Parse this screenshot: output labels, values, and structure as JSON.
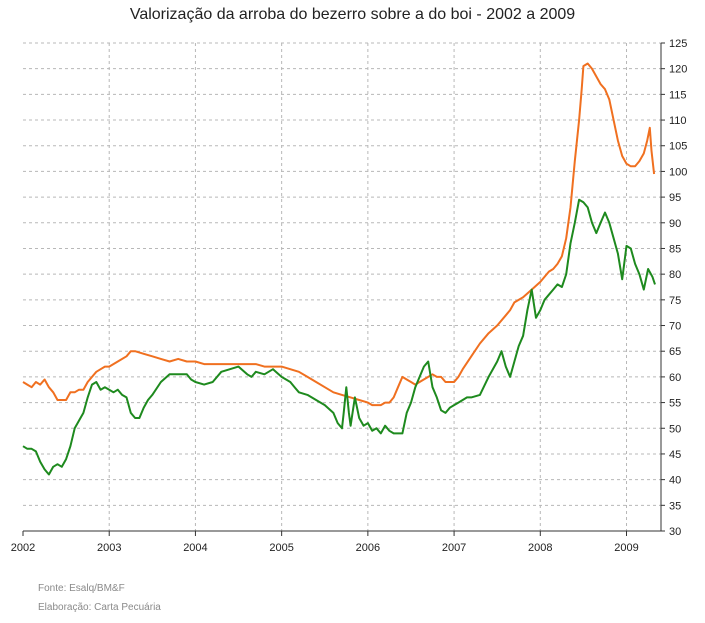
{
  "chart_data": {
    "type": "line",
    "title": "Valorização da arroba do bezerro sobre a do boi - 2002 a 2009",
    "xlim": [
      2002,
      2009.4
    ],
    "ylim": [
      30,
      125
    ],
    "x_ticks": [
      "2002",
      "2003",
      "2004",
      "2005",
      "2006",
      "2007",
      "2008",
      "2009"
    ],
    "y_ticks": [
      30,
      35,
      40,
      45,
      50,
      55,
      60,
      65,
      70,
      75,
      80,
      85,
      90,
      95,
      100,
      105,
      110,
      115,
      120,
      125
    ],
    "grid": true,
    "y_axis_side": "right",
    "series": [
      {
        "color": "#f07020",
        "points": [
          [
            2002.0,
            59
          ],
          [
            2002.05,
            58.5
          ],
          [
            2002.1,
            58
          ],
          [
            2002.15,
            59
          ],
          [
            2002.2,
            58.5
          ],
          [
            2002.25,
            59.5
          ],
          [
            2002.3,
            58
          ],
          [
            2002.35,
            57
          ],
          [
            2002.4,
            55.5
          ],
          [
            2002.45,
            55.5
          ],
          [
            2002.5,
            55.5
          ],
          [
            2002.55,
            57
          ],
          [
            2002.6,
            57
          ],
          [
            2002.65,
            57.5
          ],
          [
            2002.7,
            57.5
          ],
          [
            2002.75,
            59
          ],
          [
            2002.8,
            60
          ],
          [
            2002.85,
            61
          ],
          [
            2002.9,
            61.5
          ],
          [
            2002.95,
            62
          ],
          [
            2003.0,
            62
          ],
          [
            2003.1,
            63
          ],
          [
            2003.2,
            64
          ],
          [
            2003.25,
            65
          ],
          [
            2003.3,
            65
          ],
          [
            2003.4,
            64.5
          ],
          [
            2003.5,
            64
          ],
          [
            2003.6,
            63.5
          ],
          [
            2003.7,
            63
          ],
          [
            2003.8,
            63.5
          ],
          [
            2003.9,
            63
          ],
          [
            2004.0,
            63
          ],
          [
            2004.1,
            62.5
          ],
          [
            2004.2,
            62.5
          ],
          [
            2004.3,
            62.5
          ],
          [
            2004.4,
            62.5
          ],
          [
            2004.5,
            62.5
          ],
          [
            2004.6,
            62.5
          ],
          [
            2004.7,
            62.5
          ],
          [
            2004.8,
            62
          ],
          [
            2004.9,
            62
          ],
          [
            2005.0,
            62
          ],
          [
            2005.1,
            61.5
          ],
          [
            2005.2,
            61
          ],
          [
            2005.3,
            60
          ],
          [
            2005.4,
            59
          ],
          [
            2005.5,
            58
          ],
          [
            2005.6,
            57
          ],
          [
            2005.7,
            56.5
          ],
          [
            2005.8,
            56
          ],
          [
            2005.9,
            55.5
          ],
          [
            2006.0,
            55
          ],
          [
            2006.05,
            54.5
          ],
          [
            2006.1,
            54.5
          ],
          [
            2006.15,
            54.5
          ],
          [
            2006.2,
            55
          ],
          [
            2006.25,
            55
          ],
          [
            2006.3,
            56
          ],
          [
            2006.35,
            58
          ],
          [
            2006.4,
            60
          ],
          [
            2006.45,
            59.5
          ],
          [
            2006.5,
            59
          ],
          [
            2006.55,
            58.5
          ],
          [
            2006.6,
            59
          ],
          [
            2006.7,
            60
          ],
          [
            2006.75,
            60.5
          ],
          [
            2006.8,
            60
          ],
          [
            2006.85,
            60
          ],
          [
            2006.9,
            59
          ],
          [
            2007.0,
            59
          ],
          [
            2007.05,
            60
          ],
          [
            2007.1,
            61.5
          ],
          [
            2007.2,
            64
          ],
          [
            2007.3,
            66.5
          ],
          [
            2007.4,
            68.5
          ],
          [
            2007.5,
            70
          ],
          [
            2007.6,
            72
          ],
          [
            2007.65,
            73
          ],
          [
            2007.7,
            74.5
          ],
          [
            2007.8,
            75.5
          ],
          [
            2007.9,
            77
          ],
          [
            2008.0,
            78.5
          ],
          [
            2008.05,
            79.5
          ],
          [
            2008.1,
            80.5
          ],
          [
            2008.15,
            81
          ],
          [
            2008.2,
            82
          ],
          [
            2008.25,
            83.5
          ],
          [
            2008.3,
            87
          ],
          [
            2008.35,
            93
          ],
          [
            2008.4,
            102
          ],
          [
            2008.45,
            110
          ],
          [
            2008.48,
            116
          ],
          [
            2008.5,
            120.5
          ],
          [
            2008.55,
            121
          ],
          [
            2008.6,
            120
          ],
          [
            2008.7,
            117
          ],
          [
            2008.75,
            116
          ],
          [
            2008.8,
            114
          ],
          [
            2008.85,
            110
          ],
          [
            2008.9,
            106
          ],
          [
            2008.95,
            103
          ],
          [
            2009.0,
            101.5
          ],
          [
            2009.05,
            101
          ],
          [
            2009.1,
            101
          ],
          [
            2009.15,
            102
          ],
          [
            2009.2,
            103.5
          ],
          [
            2009.24,
            106
          ],
          [
            2009.27,
            108.5
          ],
          [
            2009.29,
            104
          ],
          [
            2009.32,
            99.5
          ]
        ]
      },
      {
        "color": "#1e8a1e",
        "points": [
          [
            2002.0,
            46.5
          ],
          [
            2002.05,
            46
          ],
          [
            2002.1,
            46
          ],
          [
            2002.15,
            45.5
          ],
          [
            2002.2,
            43.5
          ],
          [
            2002.25,
            42
          ],
          [
            2002.3,
            41
          ],
          [
            2002.35,
            42.5
          ],
          [
            2002.4,
            43
          ],
          [
            2002.45,
            42.5
          ],
          [
            2002.5,
            44
          ],
          [
            2002.55,
            46.5
          ],
          [
            2002.6,
            50
          ],
          [
            2002.65,
            51.5
          ],
          [
            2002.7,
            53
          ],
          [
            2002.75,
            56
          ],
          [
            2002.8,
            58.5
          ],
          [
            2002.85,
            59
          ],
          [
            2002.9,
            57.5
          ],
          [
            2002.95,
            58
          ],
          [
            2003.0,
            57.5
          ],
          [
            2003.05,
            57
          ],
          [
            2003.1,
            57.5
          ],
          [
            2003.15,
            56.5
          ],
          [
            2003.2,
            56
          ],
          [
            2003.25,
            53
          ],
          [
            2003.3,
            52
          ],
          [
            2003.35,
            52
          ],
          [
            2003.4,
            54
          ],
          [
            2003.45,
            55.5
          ],
          [
            2003.5,
            56.5
          ],
          [
            2003.6,
            59
          ],
          [
            2003.7,
            60.5
          ],
          [
            2003.8,
            60.5
          ],
          [
            2003.9,
            60.5
          ],
          [
            2003.95,
            59.5
          ],
          [
            2004.0,
            59
          ],
          [
            2004.1,
            58.5
          ],
          [
            2004.2,
            59
          ],
          [
            2004.3,
            61
          ],
          [
            2004.4,
            61.5
          ],
          [
            2004.5,
            62
          ],
          [
            2004.6,
            60.5
          ],
          [
            2004.65,
            60
          ],
          [
            2004.7,
            61
          ],
          [
            2004.8,
            60.5
          ],
          [
            2004.9,
            61.5
          ],
          [
            2005.0,
            60
          ],
          [
            2005.1,
            59
          ],
          [
            2005.15,
            58
          ],
          [
            2005.2,
            57
          ],
          [
            2005.3,
            56.5
          ],
          [
            2005.4,
            55.5
          ],
          [
            2005.5,
            54.5
          ],
          [
            2005.6,
            53
          ],
          [
            2005.65,
            51
          ],
          [
            2005.7,
            50
          ],
          [
            2005.72,
            53
          ],
          [
            2005.75,
            58
          ],
          [
            2005.78,
            53
          ],
          [
            2005.8,
            50.5
          ],
          [
            2005.85,
            56
          ],
          [
            2005.9,
            52
          ],
          [
            2005.95,
            50.5
          ],
          [
            2006.0,
            51
          ],
          [
            2006.05,
            49.5
          ],
          [
            2006.1,
            50
          ],
          [
            2006.15,
            49
          ],
          [
            2006.2,
            50.5
          ],
          [
            2006.25,
            49.5
          ],
          [
            2006.3,
            49
          ],
          [
            2006.4,
            49
          ],
          [
            2006.45,
            53
          ],
          [
            2006.5,
            55
          ],
          [
            2006.55,
            58
          ],
          [
            2006.6,
            60
          ],
          [
            2006.65,
            62
          ],
          [
            2006.7,
            63
          ],
          [
            2006.75,
            58
          ],
          [
            2006.8,
            56
          ],
          [
            2006.85,
            53.5
          ],
          [
            2006.9,
            53
          ],
          [
            2006.95,
            54
          ],
          [
            2007.0,
            54.5
          ],
          [
            2007.05,
            55
          ],
          [
            2007.1,
            55.5
          ],
          [
            2007.15,
            56
          ],
          [
            2007.2,
            56
          ],
          [
            2007.3,
            56.5
          ],
          [
            2007.4,
            60
          ],
          [
            2007.5,
            63
          ],
          [
            2007.55,
            65
          ],
          [
            2007.6,
            62
          ],
          [
            2007.65,
            60
          ],
          [
            2007.7,
            63
          ],
          [
            2007.75,
            66
          ],
          [
            2007.8,
            68
          ],
          [
            2007.85,
            73
          ],
          [
            2007.9,
            77
          ],
          [
            2007.95,
            71.5
          ],
          [
            2008.0,
            73
          ],
          [
            2008.05,
            75
          ],
          [
            2008.1,
            76
          ],
          [
            2008.15,
            77
          ],
          [
            2008.2,
            78
          ],
          [
            2008.25,
            77.5
          ],
          [
            2008.3,
            80
          ],
          [
            2008.35,
            86
          ],
          [
            2008.4,
            90
          ],
          [
            2008.45,
            94.5
          ],
          [
            2008.5,
            94
          ],
          [
            2008.55,
            93
          ],
          [
            2008.6,
            90
          ],
          [
            2008.65,
            88
          ],
          [
            2008.7,
            90
          ],
          [
            2008.75,
            92
          ],
          [
            2008.8,
            90
          ],
          [
            2008.85,
            87
          ],
          [
            2008.9,
            84
          ],
          [
            2008.95,
            79
          ],
          [
            2009.0,
            85.5
          ],
          [
            2009.05,
            85
          ],
          [
            2009.1,
            82
          ],
          [
            2009.15,
            80
          ],
          [
            2009.2,
            77
          ],
          [
            2009.25,
            81
          ],
          [
            2009.3,
            79.5
          ],
          [
            2009.33,
            78
          ]
        ]
      }
    ]
  },
  "footer": {
    "source": "Fonte: Esalq/BM&F",
    "credit": "Elaboração: Carta Pecuária"
  }
}
